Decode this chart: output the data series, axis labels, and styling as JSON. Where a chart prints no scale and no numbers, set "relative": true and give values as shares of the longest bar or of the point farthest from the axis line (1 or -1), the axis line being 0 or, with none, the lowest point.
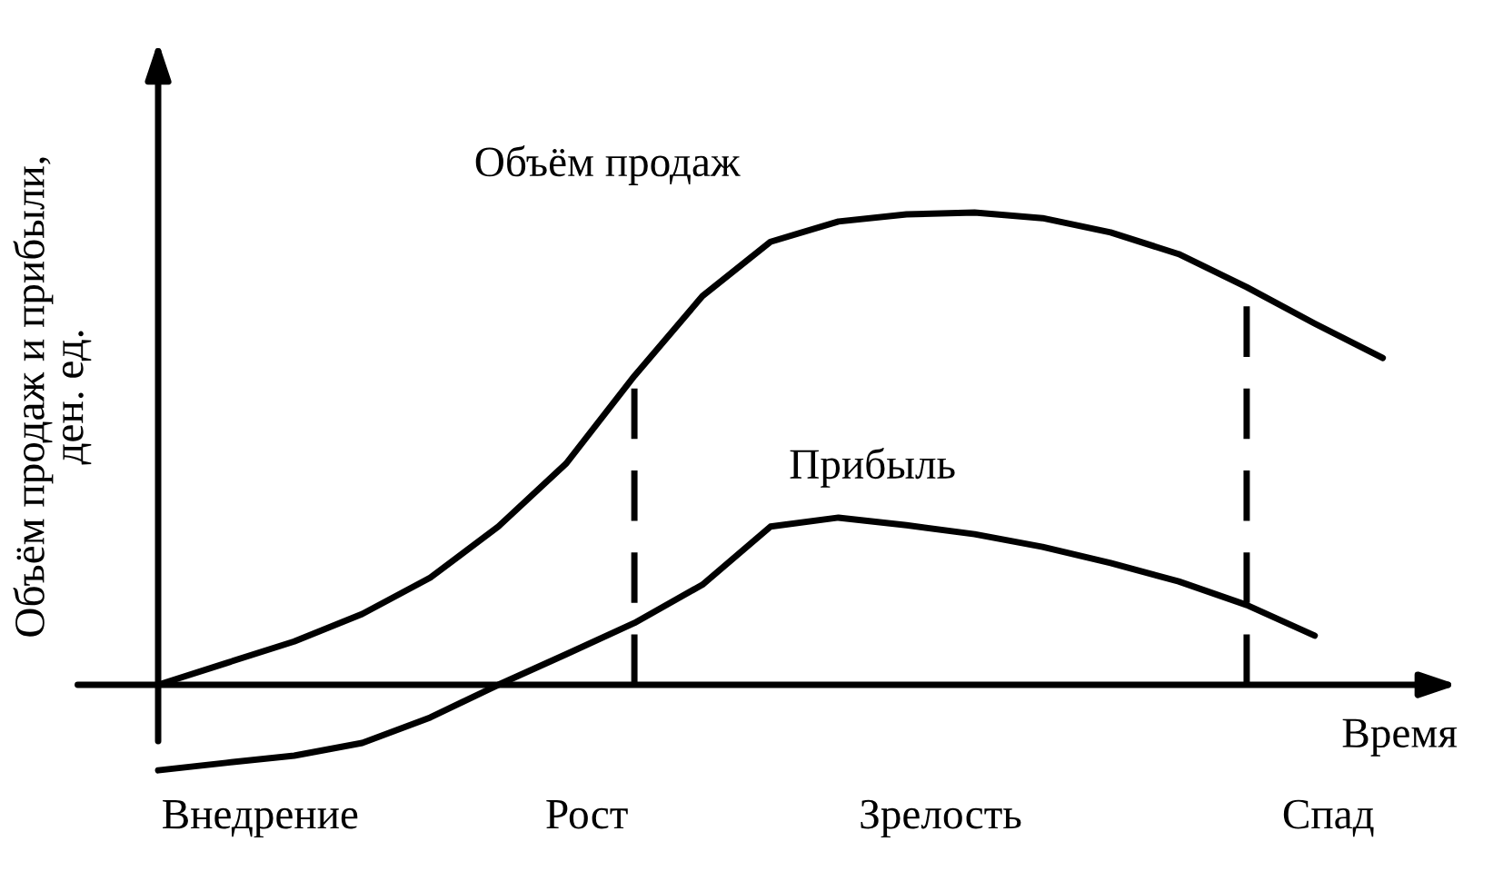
{
  "chart_data": {
    "type": "line",
    "relative": true,
    "ylabel": "Объём продаж и прибыли,\nден. ед.",
    "xlabel": "Время",
    "categories": [
      null,
      null,
      null,
      null,
      null,
      null,
      null,
      null,
      null,
      null,
      null,
      null,
      null,
      null,
      null,
      null,
      null,
      null,
      null
    ],
    "series": [
      {
        "name": "Объём продаж",
        "color": "#000000",
        "values": [
          0,
          0.046,
          0.092,
          0.15,
          0.227,
          0.335,
          0.469,
          0.654,
          0.823,
          0.938,
          0.981,
          0.996,
          1,
          0.988,
          0.958,
          0.912,
          0.842,
          0.765,
          0.692
        ]
      },
      {
        "name": "Прибыль",
        "color": "#000000",
        "values": [
          -0.181,
          -0.165,
          -0.15,
          -0.123,
          -0.069,
          0,
          0.065,
          0.131,
          0.212,
          0.335,
          0.354,
          0.338,
          0.319,
          0.292,
          0.258,
          0.219,
          0.169,
          0.104,
          null
        ]
      }
    ],
    "annotations": [
      "Внедрение",
      "Рост",
      "Зрелость",
      "Спад"
    ],
    "marker": "none",
    "line_style": "solid"
  }
}
